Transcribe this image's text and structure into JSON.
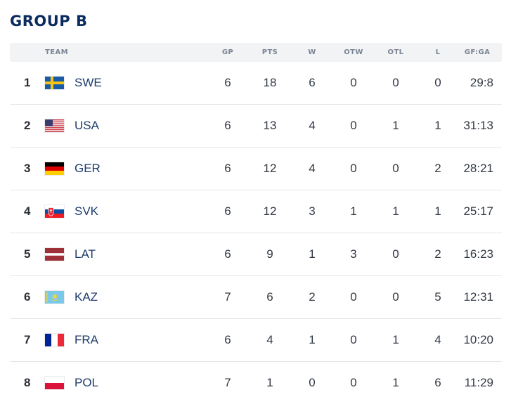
{
  "title": "GROUP B",
  "columns": {
    "team": "TEAM",
    "gp": "GP",
    "pts": "PTS",
    "w": "W",
    "otw": "OTW",
    "otl": "OTL",
    "l": "L",
    "gfga": "GF:GA"
  },
  "rows": [
    {
      "rank": "1",
      "team": "SWE",
      "gp": "6",
      "pts": "18",
      "w": "6",
      "otw": "0",
      "otl": "0",
      "l": "0",
      "gfga": "29:8"
    },
    {
      "rank": "2",
      "team": "USA",
      "gp": "6",
      "pts": "13",
      "w": "4",
      "otw": "0",
      "otl": "1",
      "l": "1",
      "gfga": "31:13"
    },
    {
      "rank": "3",
      "team": "GER",
      "gp": "6",
      "pts": "12",
      "w": "4",
      "otw": "0",
      "otl": "0",
      "l": "2",
      "gfga": "28:21"
    },
    {
      "rank": "4",
      "team": "SVK",
      "gp": "6",
      "pts": "12",
      "w": "3",
      "otw": "1",
      "otl": "1",
      "l": "1",
      "gfga": "25:17"
    },
    {
      "rank": "5",
      "team": "LAT",
      "gp": "6",
      "pts": "9",
      "w": "1",
      "otw": "3",
      "otl": "0",
      "l": "2",
      "gfga": "16:23"
    },
    {
      "rank": "6",
      "team": "KAZ",
      "gp": "7",
      "pts": "6",
      "w": "2",
      "otw": "0",
      "otl": "0",
      "l": "5",
      "gfga": "12:31"
    },
    {
      "rank": "7",
      "team": "FRA",
      "gp": "6",
      "pts": "4",
      "w": "1",
      "otw": "0",
      "otl": "1",
      "l": "4",
      "gfga": "10:20"
    },
    {
      "rank": "8",
      "team": "POL",
      "gp": "7",
      "pts": "1",
      "w": "0",
      "otw": "0",
      "otl": "1",
      "l": "6",
      "gfga": "11:29"
    }
  ],
  "flags": {
    "swe": "sweden-flag-icon",
    "usa": "usa-flag-icon",
    "ger": "germany-flag-icon",
    "svk": "slovakia-flag-icon",
    "lat": "latvia-flag-icon",
    "kaz": "kazakhstan-flag-icon",
    "fra": "france-flag-icon",
    "pol": "poland-flag-icon"
  },
  "colors": {
    "title": "#0b2c5f",
    "header_bg": "#f2f3f5",
    "row_divider": "#e3e6ea"
  }
}
